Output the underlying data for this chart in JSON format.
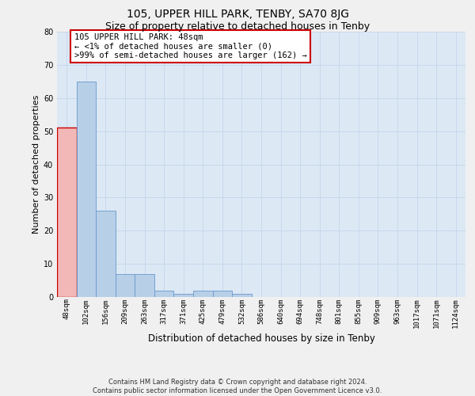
{
  "title_line1": "105, UPPER HILL PARK, TENBY, SA70 8JG",
  "title_line2": "Size of property relative to detached houses in Tenby",
  "xlabel": "Distribution of detached houses by size in Tenby",
  "ylabel": "Number of detached properties",
  "bin_labels": [
    "48sqm",
    "102sqm",
    "156sqm",
    "209sqm",
    "263sqm",
    "317sqm",
    "371sqm",
    "425sqm",
    "479sqm",
    "532sqm",
    "586sqm",
    "640sqm",
    "694sqm",
    "748sqm",
    "801sqm",
    "855sqm",
    "909sqm",
    "963sqm",
    "1017sqm",
    "1071sqm",
    "1124sqm"
  ],
  "bar_values": [
    51,
    65,
    26,
    7,
    7,
    2,
    1,
    2,
    2,
    1,
    0,
    0,
    0,
    0,
    0,
    0,
    0,
    0,
    0,
    0,
    0
  ],
  "bar_color": "#b8cfe8",
  "bar_edge_color": "#6699cc",
  "highlight_bar_index": 0,
  "highlight_bar_color": "#f2b8b8",
  "highlight_bar_edge_color": "#cc0000",
  "ylim": [
    0,
    80
  ],
  "yticks": [
    0,
    10,
    20,
    30,
    40,
    50,
    60,
    70,
    80
  ],
  "annotation_text_line1": "105 UPPER HILL PARK: 48sqm",
  "annotation_text_line2": "← <1% of detached houses are smaller (0)",
  "annotation_text_line3": ">99% of semi-detached houses are larger (162) →",
  "annotation_box_color": "#ffffff",
  "annotation_box_edge_color": "#cc0000",
  "grid_color": "#c8d8ec",
  "bg_color": "#dce8f4",
  "fig_facecolor": "#f0f0f0",
  "footer_line1": "Contains HM Land Registry data © Crown copyright and database right 2024.",
  "footer_line2": "Contains public sector information licensed under the Open Government Licence v3.0.",
  "title1_fontsize": 10,
  "title2_fontsize": 9,
  "xlabel_fontsize": 8.5,
  "ylabel_fontsize": 8,
  "tick_fontsize": 6.5,
  "annotation_fontsize": 7.5,
  "footer_fontsize": 6
}
